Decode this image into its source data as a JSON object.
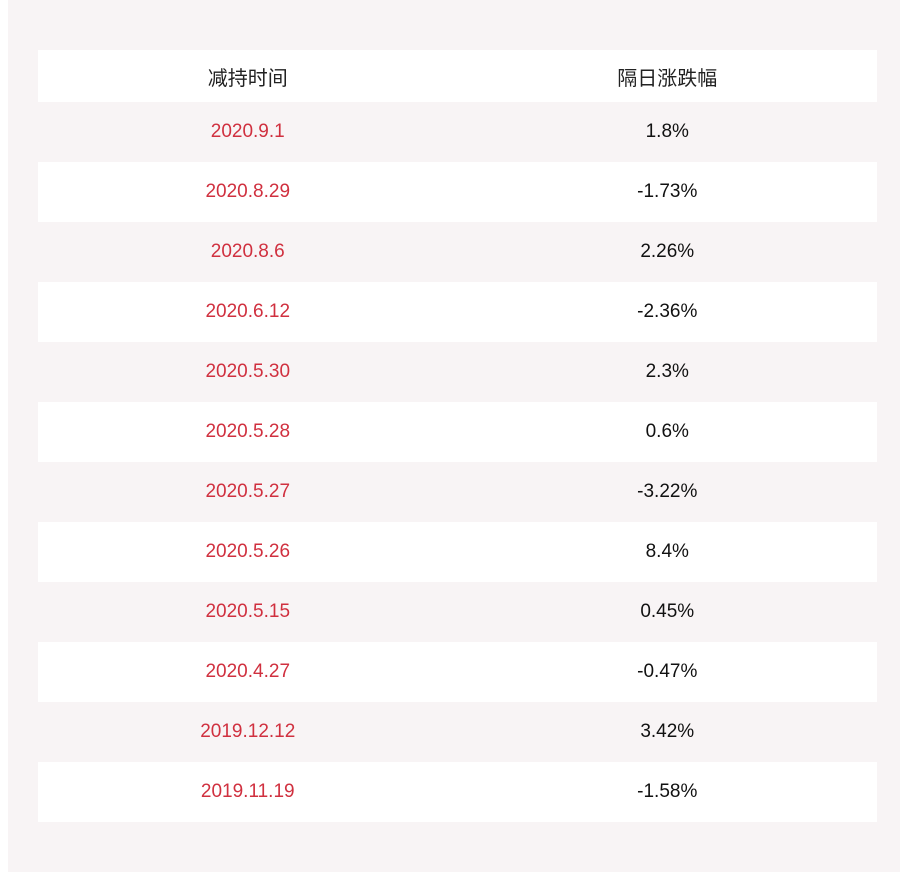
{
  "table": {
    "headers": [
      "减持时间",
      "隔日涨跌幅"
    ],
    "rows": [
      {
        "date": "2020.9.1",
        "change": "1.8%"
      },
      {
        "date": "2020.8.29",
        "change": "-1.73%"
      },
      {
        "date": "2020.8.6",
        "change": "2.26%"
      },
      {
        "date": "2020.6.12",
        "change": "-2.36%"
      },
      {
        "date": "2020.5.30",
        "change": "2.3%"
      },
      {
        "date": "2020.5.28",
        "change": "0.6%"
      },
      {
        "date": "2020.5.27",
        "change": "-3.22%"
      },
      {
        "date": "2020.5.26",
        "change": "8.4%"
      },
      {
        "date": "2020.5.15",
        "change": "0.45%"
      },
      {
        "date": "2020.4.27",
        "change": "-0.47%"
      },
      {
        "date": "2019.12.12",
        "change": "3.42%"
      },
      {
        "date": "2019.11.19",
        "change": "-1.58%"
      }
    ]
  },
  "colors": {
    "date_text": "#d0303f",
    "value_text": "#111111",
    "row_alt": "#f8f4f5",
    "row_white": "#ffffff"
  }
}
